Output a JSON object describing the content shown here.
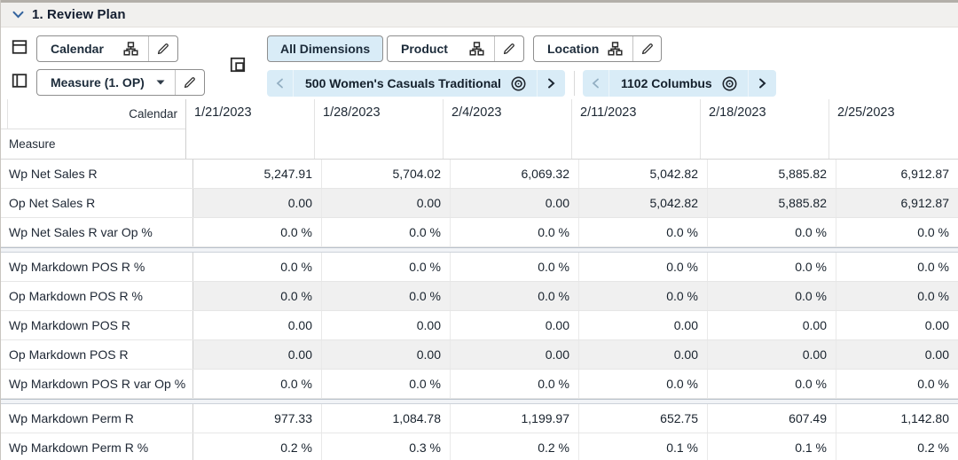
{
  "title_bar": {
    "title": "1. Review Plan"
  },
  "toolbar": {
    "row_axis_button": {
      "label": "Calendar"
    },
    "column_axis_button": {
      "label": "Measure (1. OP)"
    },
    "all_dimensions_button": {
      "label": "All Dimensions"
    },
    "product_button": {
      "label": "Product"
    },
    "location_button": {
      "label": "Location"
    },
    "product_page_selector": {
      "value": "500 Women's Casuals Traditional"
    },
    "location_page_selector": {
      "value": "1102 Columbus"
    }
  },
  "icons": {
    "title": "chevron-down-icon",
    "row_axis": "table-rows-icon",
    "column_axis": "table-columns-icon",
    "page_axis": "nested-page-icon",
    "hierarchy": "org-chart-icon",
    "edit": "pencil-icon",
    "dropdown": "caret-down-icon",
    "page_prev": "chevron-left-icon",
    "page_next": "chevron-right-icon",
    "page_scope": "target-icon"
  },
  "colors": {
    "accent_light_blue": "#d9ecf7",
    "title_chevron_blue": "#35649e",
    "shaded_cell": "#f0f0f0",
    "titlebar_bg": "#f1f0ee"
  },
  "table": {
    "corner": {
      "column_axis_label": "Calendar",
      "row_axis_label": "Measure"
    },
    "columns": [
      "1/21/2023",
      "1/28/2023",
      "2/4/2023",
      "2/11/2023",
      "2/18/2023",
      "2/25/2023"
    ],
    "groups": [
      {
        "rows": [
          {
            "label": "Wp Net Sales R",
            "shaded": false,
            "values": [
              "5,247.91",
              "5,704.02",
              "6,069.32",
              "5,042.82",
              "5,885.82",
              "6,912.87"
            ]
          },
          {
            "label": "Op Net Sales R",
            "shaded": true,
            "values": [
              "0.00",
              "0.00",
              "0.00",
              "5,042.82",
              "5,885.82",
              "6,912.87"
            ]
          },
          {
            "label": "Wp Net Sales R var Op %",
            "shaded": false,
            "values": [
              "0.0 %",
              "0.0 %",
              "0.0 %",
              "0.0 %",
              "0.0 %",
              "0.0 %"
            ]
          }
        ]
      },
      {
        "rows": [
          {
            "label": "Wp Markdown POS R %",
            "shaded": false,
            "values": [
              "0.0 %",
              "0.0 %",
              "0.0 %",
              "0.0 %",
              "0.0 %",
              "0.0 %"
            ]
          },
          {
            "label": "Op Markdown POS R %",
            "shaded": true,
            "values": [
              "0.0 %",
              "0.0 %",
              "0.0 %",
              "0.0 %",
              "0.0 %",
              "0.0 %"
            ]
          },
          {
            "label": "Wp Markdown POS R",
            "shaded": false,
            "values": [
              "0.00",
              "0.00",
              "0.00",
              "0.00",
              "0.00",
              "0.00"
            ]
          },
          {
            "label": "Op Markdown POS R",
            "shaded": true,
            "values": [
              "0.00",
              "0.00",
              "0.00",
              "0.00",
              "0.00",
              "0.00"
            ]
          },
          {
            "label": "Wp Markdown POS R var Op %",
            "shaded": false,
            "values": [
              "0.0 %",
              "0.0 %",
              "0.0 %",
              "0.0 %",
              "0.0 %",
              "0.0 %"
            ]
          }
        ]
      },
      {
        "rows": [
          {
            "label": "Wp Markdown Perm R",
            "shaded": false,
            "values": [
              "977.33",
              "1,084.78",
              "1,199.97",
              "652.75",
              "607.49",
              "1,142.80"
            ]
          },
          {
            "label": "Wp Markdown Perm R %",
            "shaded": false,
            "values": [
              "0.2 %",
              "0.3 %",
              "0.2 %",
              "0.1 %",
              "0.1 %",
              "0.2 %"
            ]
          }
        ]
      }
    ]
  }
}
